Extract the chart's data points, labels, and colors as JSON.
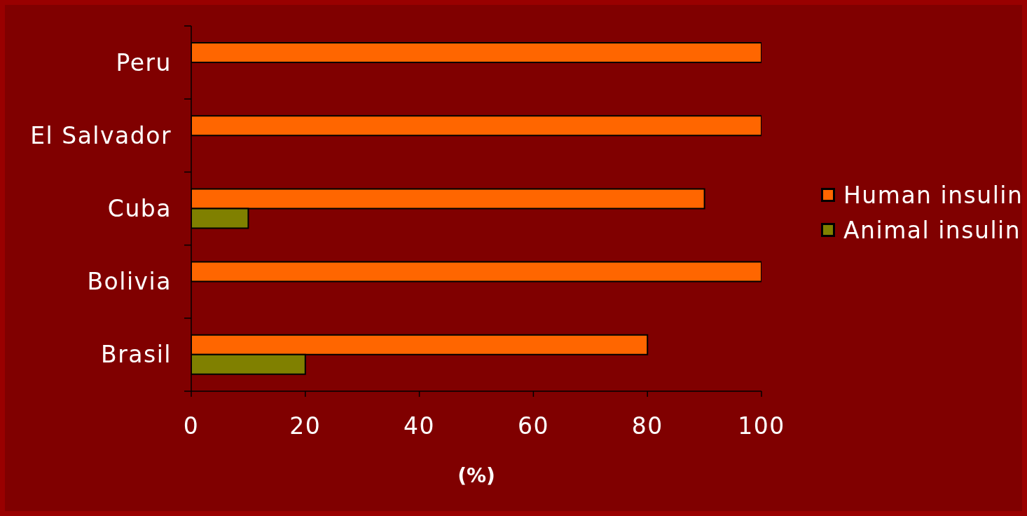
{
  "chart_data": {
    "type": "bar",
    "orientation": "horizontal",
    "xlabel": "(%)",
    "categories": [
      "Peru",
      "El Salvador",
      "Cuba",
      "Bolivia",
      "Brasil"
    ],
    "series": [
      {
        "name": "Human insulin",
        "color": "#ff6600",
        "values": [
          100,
          100,
          90,
          100,
          80
        ]
      },
      {
        "name": "Animal insulin",
        "color": "#808000",
        "values": [
          null,
          null,
          10,
          null,
          20
        ]
      }
    ],
    "xlim": [
      0,
      100
    ],
    "xticks": [
      0,
      20,
      40,
      60,
      80,
      100
    ],
    "legend": "right"
  }
}
